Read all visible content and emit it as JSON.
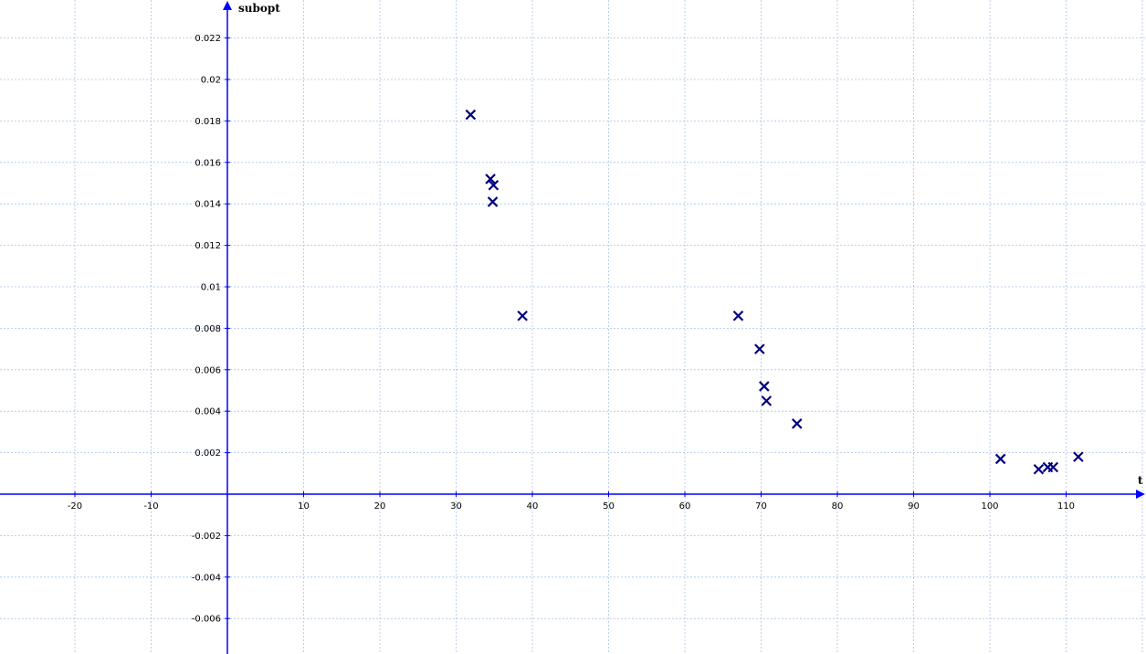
{
  "chart_data": {
    "type": "scatter",
    "xlabel": "t",
    "ylabel": "subopt",
    "xlim": [
      -30,
      130
    ],
    "ylim": [
      -0.0078,
      0.0237
    ],
    "grid": true,
    "x_ticks": [
      -20,
      -10,
      10,
      20,
      30,
      40,
      50,
      60,
      70,
      80,
      90,
      100,
      110
    ],
    "y_ticks": [
      0.022,
      0.02,
      0.018,
      0.016,
      0.014,
      0.012,
      0.01,
      0.008,
      0.006,
      0.004,
      0.002,
      -0.002,
      -0.004,
      -0.006
    ],
    "series": [
      {
        "marker": "x",
        "color": "#00007f",
        "points": [
          {
            "x": 31.9,
            "y": 0.0183
          },
          {
            "x": 34.5,
            "y": 0.0152
          },
          {
            "x": 34.9,
            "y": 0.0149
          },
          {
            "x": 34.8,
            "y": 0.0141
          },
          {
            "x": 38.7,
            "y": 0.0086
          },
          {
            "x": 67.0,
            "y": 0.0086
          },
          {
            "x": 69.8,
            "y": 0.007
          },
          {
            "x": 70.4,
            "y": 0.0052
          },
          {
            "x": 70.7,
            "y": 0.0045
          },
          {
            "x": 74.7,
            "y": 0.0034
          },
          {
            "x": 101.4,
            "y": 0.0017
          },
          {
            "x": 106.4,
            "y": 0.0012
          },
          {
            "x": 107.6,
            "y": 0.0013
          },
          {
            "x": 108.3,
            "y": 0.0013
          },
          {
            "x": 111.6,
            "y": 0.0018
          }
        ]
      }
    ]
  },
  "colors": {
    "axis": "#0000ff",
    "grid": "#a9c4e6",
    "marker": "#00007f"
  }
}
